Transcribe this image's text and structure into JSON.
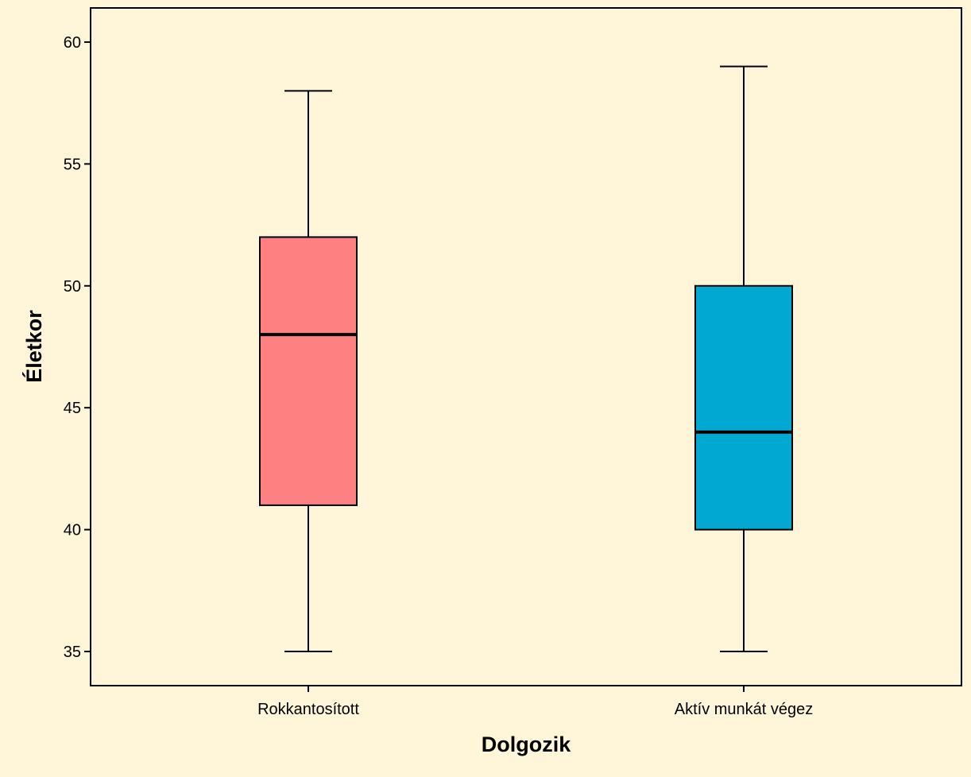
{
  "chart_data": {
    "type": "boxplot",
    "xlabel": "Dolgozik",
    "ylabel": "Életkor",
    "ylim": [
      33.6,
      61.4
    ],
    "yticks": [
      35,
      40,
      45,
      50,
      55,
      60
    ],
    "categories": [
      "Rokkantosított",
      "Aktív munkát végez"
    ],
    "boxes": [
      {
        "category": "Rokkantosított",
        "min": 35,
        "q1": 41,
        "median": 48,
        "q3": 52,
        "max": 58,
        "color": "#FF8080"
      },
      {
        "category": "Aktív munkát végez",
        "min": 35,
        "q1": 40,
        "median": 44,
        "q3": 50,
        "max": 59,
        "color": "#00A8D2"
      }
    ],
    "grid": false,
    "colors": {
      "background": "#FFF5D8",
      "plot_background": "#FFF5D8",
      "axis": "#000000"
    }
  }
}
